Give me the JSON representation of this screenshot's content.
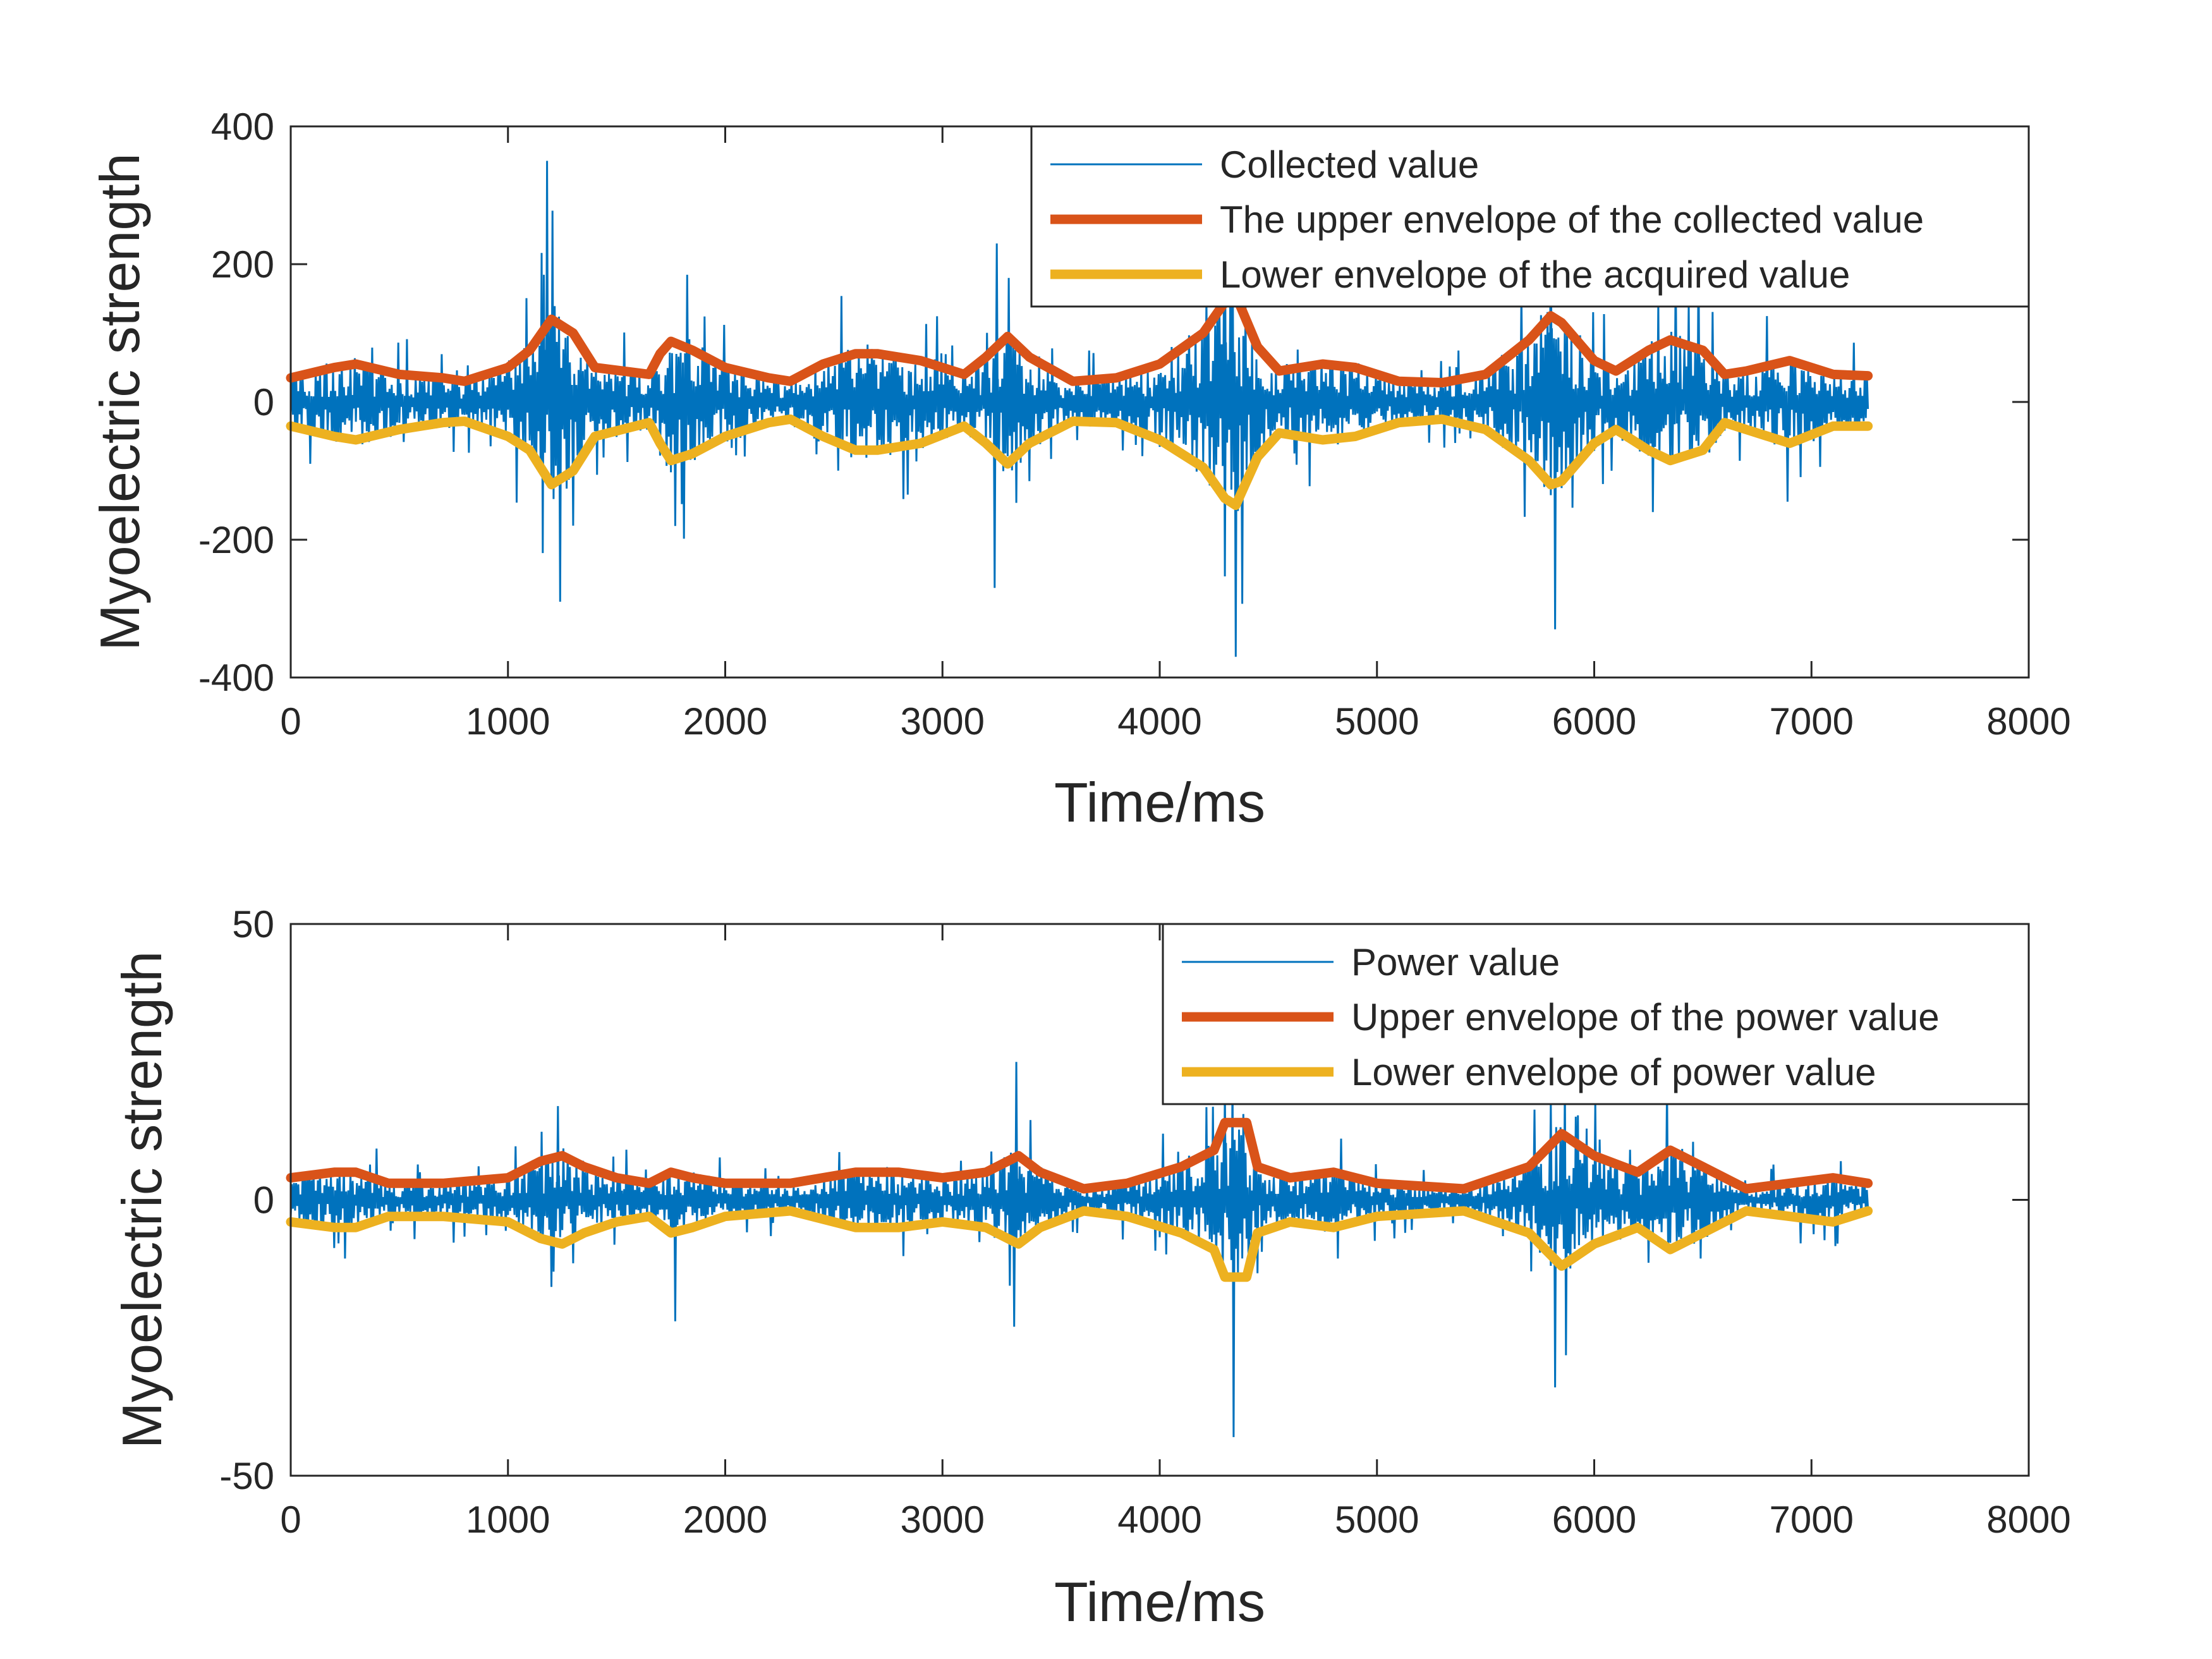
{
  "colors": {
    "raw": "#0072BD",
    "upper": "#D95319",
    "lower": "#EDB120",
    "axis": "#262626",
    "background": "#ffffff"
  },
  "chart_data": [
    {
      "type": "line",
      "xlabel": "Time/ms",
      "ylabel": "Myoelectric strength",
      "xlim": [
        0,
        8000
      ],
      "ylim": [
        -400,
        400
      ],
      "xticks": [
        0,
        1000,
        2000,
        3000,
        4000,
        5000,
        6000,
        7000,
        8000
      ],
      "xtick_labels": [
        "0",
        "1000",
        "2000",
        "3000",
        "4000",
        "5000",
        "6000",
        "7000",
        "8000"
      ],
      "yticks": [
        -400,
        -200,
        0,
        200,
        400
      ],
      "ytick_labels": [
        "-400",
        "-200",
        "0",
        "200",
        "400"
      ],
      "grid": false,
      "legend_position": "top-right",
      "series": [
        {
          "name": "Collected value",
          "color": "#0072BD",
          "style": "thin",
          "x_range": [
            0,
            7260
          ],
          "peaks": [
            {
              "x": 1180,
              "y": 350
            },
            {
              "x": 1240,
              "y": -290
            },
            {
              "x": 3250,
              "y": 230
            },
            {
              "x": 3240,
              "y": -270
            },
            {
              "x": 4350,
              "y": -370
            },
            {
              "x": 4300,
              "y": 310
            },
            {
              "x": 5800,
              "y": 300
            },
            {
              "x": 5820,
              "y": -330
            },
            {
              "x": 6480,
              "y": 210
            },
            {
              "x": 1770,
              "y": -180
            }
          ]
        },
        {
          "name": "The upper envelope of the collected value",
          "color": "#D95319",
          "style": "thick",
          "x": [
            0,
            200,
            300,
            500,
            700,
            800,
            1000,
            1100,
            1200,
            1300,
            1400,
            1650,
            1700,
            1750,
            1850,
            2000,
            2200,
            2300,
            2450,
            2600,
            2700,
            2900,
            3100,
            3200,
            3300,
            3400,
            3600,
            3800,
            4000,
            4200,
            4300,
            4350,
            4450,
            4550,
            4750,
            4900,
            5100,
            5300,
            5500,
            5700,
            5800,
            5850,
            6000,
            6100,
            6250,
            6350,
            6500,
            6600,
            6700,
            6900,
            7100,
            7260
          ],
          "y": [
            35,
            50,
            55,
            40,
            35,
            30,
            50,
            75,
            120,
            100,
            50,
            40,
            70,
            88,
            75,
            50,
            35,
            30,
            55,
            70,
            70,
            60,
            40,
            65,
            95,
            65,
            30,
            35,
            55,
            100,
            145,
            155,
            80,
            45,
            55,
            50,
            30,
            28,
            40,
            90,
            125,
            115,
            60,
            45,
            75,
            90,
            75,
            40,
            45,
            60,
            40,
            38
          ]
        },
        {
          "name": "Lower envelope of the acquired value",
          "color": "#EDB120",
          "style": "thick",
          "x": [
            0,
            200,
            300,
            500,
            700,
            800,
            1000,
            1100,
            1200,
            1300,
            1400,
            1650,
            1700,
            1750,
            1850,
            2000,
            2200,
            2300,
            2450,
            2600,
            2700,
            2900,
            3100,
            3200,
            3300,
            3400,
            3600,
            3800,
            4000,
            4200,
            4300,
            4350,
            4450,
            4550,
            4750,
            4900,
            5100,
            5300,
            5500,
            5700,
            5800,
            5850,
            6000,
            6100,
            6250,
            6350,
            6500,
            6600,
            6700,
            6900,
            7100,
            7260
          ],
          "y": [
            -35,
            -50,
            -55,
            -40,
            -30,
            -28,
            -50,
            -70,
            -120,
            -100,
            -50,
            -30,
            -60,
            -85,
            -75,
            -50,
            -30,
            -25,
            -50,
            -70,
            -70,
            -60,
            -35,
            -60,
            -90,
            -60,
            -28,
            -30,
            -55,
            -95,
            -140,
            -150,
            -80,
            -45,
            -55,
            -50,
            -30,
            -25,
            -40,
            -85,
            -120,
            -115,
            -60,
            -40,
            -70,
            -85,
            -70,
            -30,
            -40,
            -60,
            -35,
            -35
          ]
        }
      ]
    },
    {
      "type": "line",
      "xlabel": "Time/ms",
      "ylabel": "Myoelectric strength",
      "xlim": [
        0,
        8000
      ],
      "ylim": [
        -50,
        50
      ],
      "xticks": [
        0,
        1000,
        2000,
        3000,
        4000,
        5000,
        6000,
        7000,
        8000
      ],
      "xtick_labels": [
        "0",
        "1000",
        "2000",
        "3000",
        "4000",
        "5000",
        "6000",
        "7000",
        "8000"
      ],
      "yticks": [
        -50,
        0,
        50
      ],
      "ytick_labels": [
        "-50",
        "0",
        "50"
      ],
      "grid": false,
      "legend_position": "top-right",
      "series": [
        {
          "name": "Power value",
          "color": "#0072BD",
          "style": "thin",
          "x_range": [
            0,
            7260
          ],
          "peaks": [
            {
              "x": 3340,
              "y": 25
            },
            {
              "x": 3330,
              "y": -23
            },
            {
              "x": 4340,
              "y": -43
            },
            {
              "x": 4300,
              "y": 20
            },
            {
              "x": 5820,
              "y": -34
            },
            {
              "x": 5800,
              "y": 18
            },
            {
              "x": 1770,
              "y": -22
            },
            {
              "x": 1230,
              "y": 17
            }
          ]
        },
        {
          "name": "Upper envelope of the power value",
          "color": "#D95319",
          "style": "thick",
          "x": [
            0,
            200,
            300,
            450,
            700,
            1000,
            1150,
            1250,
            1350,
            1500,
            1650,
            1750,
            1850,
            2000,
            2300,
            2600,
            2800,
            3000,
            3200,
            3350,
            3450,
            3650,
            3850,
            4100,
            4250,
            4300,
            4400,
            4450,
            4600,
            4800,
            5000,
            5400,
            5700,
            5850,
            6000,
            6200,
            6350,
            6500,
            6700,
            6900,
            7100,
            7260
          ],
          "y": [
            4,
            5,
            5,
            3,
            3,
            4,
            7,
            8,
            6,
            4,
            3,
            5,
            4,
            3,
            3,
            5,
            5,
            4,
            5,
            8,
            5,
            2,
            3,
            6,
            9,
            14,
            14,
            6,
            4,
            5,
            3,
            2,
            6,
            12,
            8,
            5,
            9,
            6,
            2,
            3,
            4,
            3
          ]
        },
        {
          "name": "Lower envelope of power value",
          "color": "#EDB120",
          "style": "thick",
          "x": [
            0,
            200,
            300,
            450,
            700,
            1000,
            1150,
            1250,
            1350,
            1500,
            1650,
            1750,
            1850,
            2000,
            2300,
            2600,
            2800,
            3000,
            3200,
            3350,
            3450,
            3650,
            3850,
            4100,
            4250,
            4300,
            4400,
            4450,
            4600,
            4800,
            5000,
            5400,
            5700,
            5850,
            6000,
            6200,
            6350,
            6500,
            6700,
            6900,
            7100,
            7260
          ],
          "y": [
            -4,
            -5,
            -5,
            -3,
            -3,
            -4,
            -7,
            -8,
            -6,
            -4,
            -3,
            -6,
            -5,
            -3,
            -2,
            -5,
            -5,
            -4,
            -5,
            -8,
            -5,
            -2,
            -3,
            -6,
            -9,
            -14,
            -14,
            -6,
            -4,
            -5,
            -3,
            -2,
            -6,
            -12,
            -8,
            -5,
            -9,
            -6,
            -2,
            -3,
            -4,
            -2
          ]
        }
      ]
    }
  ]
}
